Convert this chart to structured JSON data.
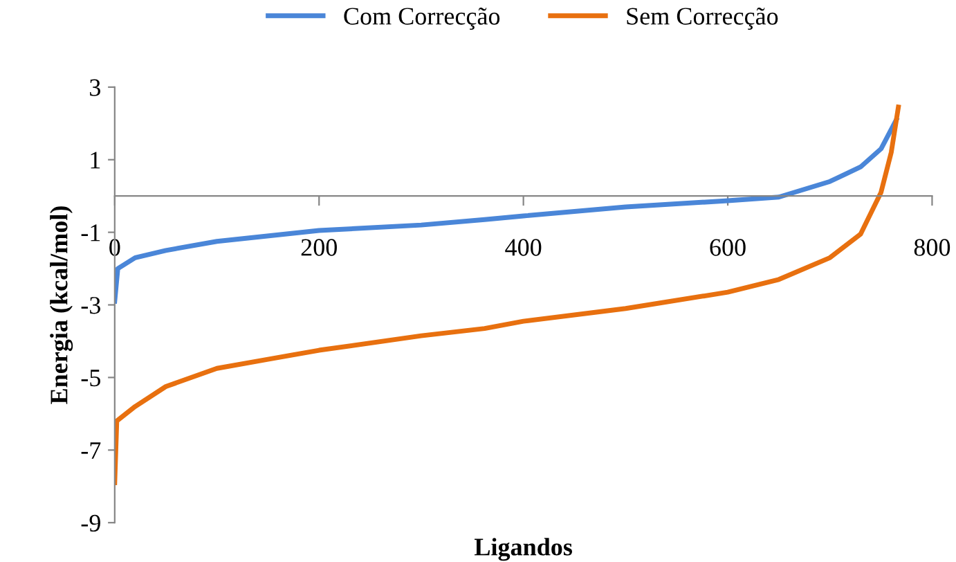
{
  "chart_data": {
    "type": "line",
    "xlabel": "Ligandos",
    "ylabel": "Energia (kcal/mol)",
    "xlim": [
      0,
      800
    ],
    "xticks": [
      0,
      200,
      400,
      600,
      800
    ],
    "ylim": [
      -9,
      3
    ],
    "yticks": [
      -9,
      -7,
      -5,
      -3,
      -1,
      1,
      3
    ],
    "grid": false,
    "legend": "top",
    "marker": "none",
    "line_style": "solid",
    "series": [
      {
        "name": "Com Correcção",
        "color": "#4a86d8",
        "x": [
          0,
          3,
          20,
          50,
          100,
          200,
          300,
          362,
          400,
          500,
          600,
          650,
          700,
          730,
          750,
          765
        ],
        "values": [
          -2.9,
          -2.0,
          -1.7,
          -1.5,
          -1.25,
          -0.95,
          -0.8,
          -0.65,
          -0.55,
          -0.3,
          -0.13,
          -0.03,
          0.4,
          0.8,
          1.3,
          2.1
        ]
      },
      {
        "name": "Sem Correcção",
        "color": "#e8700f",
        "x": [
          0,
          2,
          20,
          50,
          100,
          150,
          200,
          300,
          362,
          400,
          500,
          600,
          650,
          700,
          730,
          750,
          760,
          767
        ],
        "values": [
          -7.9,
          -6.2,
          -5.8,
          -5.25,
          -4.75,
          -4.5,
          -4.25,
          -3.85,
          -3.65,
          -3.45,
          -3.1,
          -2.65,
          -2.3,
          -1.7,
          -1.05,
          0.1,
          1.2,
          2.45
        ]
      }
    ]
  }
}
